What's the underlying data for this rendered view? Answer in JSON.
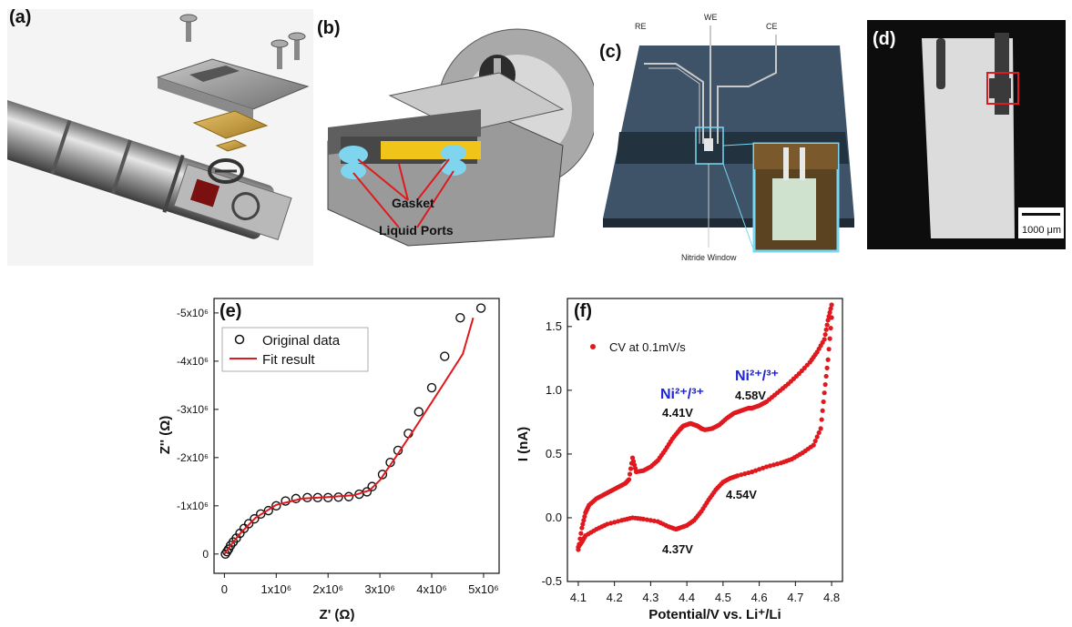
{
  "figure": {
    "panel_labels": {
      "a": "(a)",
      "b": "(b)",
      "c": "(c)",
      "d": "(d)",
      "e": "(e)",
      "f": "(f)"
    },
    "panel_b": {
      "gasket_label": "Gasket",
      "ports_label": "Liquid Ports"
    },
    "panel_c": {
      "re": "RE",
      "we": "WE",
      "ce": "CE",
      "window": "Nitride Window"
    },
    "panel_d": {
      "scale_bar": "1000 μm"
    },
    "panel_e": {
      "ylabel": "Z'' (Ω)",
      "xlabel": "Z' (Ω)",
      "legend_data": "Original data",
      "legend_fit": "Fit result",
      "xticks": [
        "0",
        "1x10⁶",
        "2x10⁶",
        "3x10⁶",
        "4x10⁶",
        "5x10⁶"
      ],
      "yticks": [
        "0",
        "-1x10⁶",
        "-2x10⁶",
        "-3x10⁶",
        "-4x10⁶",
        "-5x10⁶"
      ]
    },
    "panel_f": {
      "ylabel": "I (nA)",
      "xlabel": "Potential/V vs. Li⁺/Li",
      "legend": "CV at 0.1mV/s",
      "ni_label_1": "Ni²⁺/³⁺",
      "ni_label_2": "Ni²⁺/³⁺",
      "ann_441": "4.41V",
      "ann_458": "4.58V",
      "ann_454": "4.54V",
      "ann_437": "4.37V",
      "xticks": [
        "4.1",
        "4.2",
        "4.3",
        "4.4",
        "4.5",
        "4.6",
        "4.7",
        "4.8"
      ],
      "yticks": [
        "-0.5",
        "0.0",
        "0.5",
        "1.0",
        "1.5"
      ]
    }
  },
  "colors": {
    "data_red": "#e0191e",
    "ni_blue": "#1f24d6",
    "black": "#111111"
  },
  "chart_data": [
    {
      "type": "scatter",
      "panel": "e",
      "xlabel": "Z' (Ω)",
      "ylabel": "Z'' (Ω)",
      "xlim": [
        -200000,
        5300000
      ],
      "ylim": [
        -5300000,
        400000
      ],
      "series": [
        {
          "name": "Original data",
          "x": [
            20000,
            50000,
            80000,
            120000,
            170000,
            230000,
            300000,
            380000,
            470000,
            580000,
            700000,
            850000,
            1000000,
            1180000,
            1380000,
            1600000,
            1800000,
            2000000,
            2200000,
            2400000,
            2600000,
            2750000,
            2850000,
            3050000,
            3200000,
            3350000,
            3550000,
            3750000,
            4000000,
            4250000,
            4550000,
            4950000
          ],
          "y": [
            0,
            -50000,
            -100000,
            -180000,
            -250000,
            -330000,
            -430000,
            -530000,
            -630000,
            -730000,
            -830000,
            -900000,
            -1000000,
            -1100000,
            -1150000,
            -1170000,
            -1170000,
            -1170000,
            -1180000,
            -1190000,
            -1240000,
            -1290000,
            -1400000,
            -1650000,
            -1900000,
            -2150000,
            -2500000,
            -2950000,
            -3450000,
            -4100000,
            -4900000,
            -5100000
          ]
        },
        {
          "name": "Fit result",
          "x": [
            0,
            100000,
            300000,
            600000,
            1000000,
            1500000,
            2000000,
            2500000,
            2800000,
            3000000,
            3300000,
            3700000,
            4200000,
            4600000,
            4800000
          ],
          "y": [
            0,
            -150000,
            -420000,
            -750000,
            -1020000,
            -1150000,
            -1180000,
            -1220000,
            -1320000,
            -1530000,
            -2000000,
            -2650000,
            -3480000,
            -4150000,
            -4900000
          ]
        }
      ]
    },
    {
      "type": "scatter",
      "panel": "f",
      "xlabel": "Potential/V vs. Li⁺/Li",
      "ylabel": "I (nA)",
      "xlim": [
        4.07,
        4.83
      ],
      "ylim": [
        -0.5,
        1.72
      ],
      "series": [
        {
          "name": "CV at 0.1mV/s",
          "anodic_x": [
            4.1,
            4.11,
            4.12,
            4.13,
            4.15,
            4.17,
            4.19,
            4.21,
            4.23,
            4.24,
            4.25,
            4.26,
            4.28,
            4.3,
            4.32,
            4.34,
            4.36,
            4.38,
            4.39,
            4.4,
            4.41,
            4.42,
            4.43,
            4.44,
            4.45,
            4.47,
            4.49,
            4.51,
            4.53,
            4.55,
            4.57,
            4.58,
            4.6,
            4.62,
            4.65,
            4.68,
            4.71,
            4.74,
            4.76,
            4.78,
            4.79,
            4.8
          ],
          "anodic_y": [
            -0.25,
            -0.08,
            0.04,
            0.1,
            0.15,
            0.18,
            0.21,
            0.24,
            0.27,
            0.3,
            0.47,
            0.36,
            0.37,
            0.4,
            0.45,
            0.53,
            0.62,
            0.69,
            0.72,
            0.73,
            0.74,
            0.73,
            0.72,
            0.7,
            0.69,
            0.7,
            0.73,
            0.78,
            0.82,
            0.84,
            0.86,
            0.86,
            0.88,
            0.91,
            0.98,
            1.05,
            1.13,
            1.22,
            1.3,
            1.4,
            1.55,
            1.67
          ],
          "cathodic_x": [
            4.8,
            4.79,
            4.78,
            4.77,
            4.75,
            4.72,
            4.69,
            4.66,
            4.62,
            4.58,
            4.54,
            4.52,
            4.5,
            4.48,
            4.46,
            4.44,
            4.42,
            4.4,
            4.38,
            4.37,
            4.35,
            4.32,
            4.28,
            4.25,
            4.22,
            4.18,
            4.15,
            4.12,
            4.11,
            4.1
          ],
          "cathodic_y": [
            1.57,
            1.24,
            0.98,
            0.7,
            0.57,
            0.51,
            0.46,
            0.43,
            0.4,
            0.36,
            0.33,
            0.31,
            0.28,
            0.22,
            0.14,
            0.05,
            -0.02,
            -0.06,
            -0.08,
            -0.09,
            -0.07,
            -0.03,
            -0.01,
            0.0,
            -0.02,
            -0.05,
            -0.09,
            -0.14,
            -0.19,
            -0.23
          ]
        }
      ]
    }
  ]
}
